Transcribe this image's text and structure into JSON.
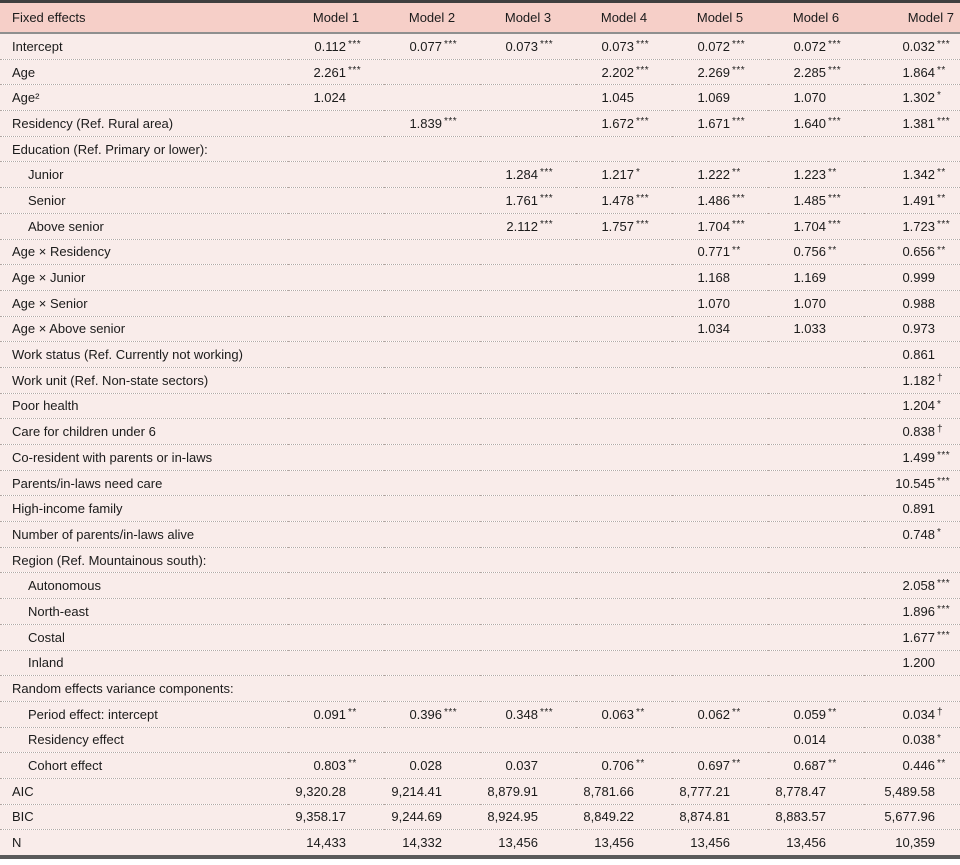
{
  "table": {
    "columns": [
      "Fixed effects",
      "Model 1",
      "Model 2",
      "Model 3",
      "Model 4",
      "Model 5",
      "Model 6",
      "Model 7"
    ],
    "rows": [
      {
        "label": "Intercept",
        "indent": false,
        "values": [
          "0.112***",
          "0.077***",
          "0.073***",
          "0.073***",
          "0.072***",
          "0.072***",
          "0.032***"
        ]
      },
      {
        "label": "Age",
        "indent": false,
        "values": [
          "2.261***",
          "",
          "",
          "2.202***",
          "2.269***",
          "2.285***",
          "1.864**"
        ]
      },
      {
        "label": "Age²",
        "indent": false,
        "values": [
          "1.024",
          "",
          "",
          "1.045",
          "1.069",
          "1.070",
          "1.302*"
        ]
      },
      {
        "label": "Residency (Ref. Rural area)",
        "indent": false,
        "values": [
          "",
          "1.839***",
          "",
          "1.672***",
          "1.671***",
          "1.640***",
          "1.381***"
        ]
      },
      {
        "label": "Education (Ref. Primary or lower):",
        "indent": false,
        "values": [
          "",
          "",
          "",
          "",
          "",
          "",
          ""
        ]
      },
      {
        "label": "Junior",
        "indent": true,
        "values": [
          "",
          "",
          "1.284***",
          "1.217*",
          "1.222**",
          "1.223**",
          "1.342**"
        ]
      },
      {
        "label": "Senior",
        "indent": true,
        "values": [
          "",
          "",
          "1.761***",
          "1.478***",
          "1.486***",
          "1.485***",
          "1.491**"
        ]
      },
      {
        "label": "Above senior",
        "indent": true,
        "values": [
          "",
          "",
          "2.112***",
          "1.757***",
          "1.704***",
          "1.704***",
          "1.723***"
        ]
      },
      {
        "label": "Age × Residency",
        "indent": false,
        "values": [
          "",
          "",
          "",
          "",
          "0.771**",
          "0.756**",
          "0.656**"
        ]
      },
      {
        "label": "Age × Junior",
        "indent": false,
        "values": [
          "",
          "",
          "",
          "",
          "1.168",
          "1.169",
          "0.999"
        ]
      },
      {
        "label": "Age × Senior",
        "indent": false,
        "values": [
          "",
          "",
          "",
          "",
          "1.070",
          "1.070",
          "0.988"
        ]
      },
      {
        "label": "Age × Above senior",
        "indent": false,
        "values": [
          "",
          "",
          "",
          "",
          "1.034",
          "1.033",
          "0.973"
        ]
      },
      {
        "label": "Work status (Ref. Currently not working)",
        "indent": false,
        "values": [
          "",
          "",
          "",
          "",
          "",
          "",
          "0.861"
        ]
      },
      {
        "label": "Work unit (Ref. Non-state sectors)",
        "indent": false,
        "values": [
          "",
          "",
          "",
          "",
          "",
          "",
          "1.182†"
        ]
      },
      {
        "label": "Poor health",
        "indent": false,
        "values": [
          "",
          "",
          "",
          "",
          "",
          "",
          "1.204*"
        ]
      },
      {
        "label": "Care for children under 6",
        "indent": false,
        "values": [
          "",
          "",
          "",
          "",
          "",
          "",
          "0.838†"
        ]
      },
      {
        "label": "Co-resident with parents or in-laws",
        "indent": false,
        "values": [
          "",
          "",
          "",
          "",
          "",
          "",
          "1.499***"
        ]
      },
      {
        "label": "Parents/in-laws need care",
        "indent": false,
        "values": [
          "",
          "",
          "",
          "",
          "",
          "",
          "10.545***"
        ]
      },
      {
        "label": "High-income family",
        "indent": false,
        "values": [
          "",
          "",
          "",
          "",
          "",
          "",
          "0.891"
        ]
      },
      {
        "label": "Number of parents/in-laws alive",
        "indent": false,
        "values": [
          "",
          "",
          "",
          "",
          "",
          "",
          "0.748*"
        ]
      },
      {
        "label": "Region (Ref. Mountainous south):",
        "indent": false,
        "values": [
          "",
          "",
          "",
          "",
          "",
          "",
          ""
        ]
      },
      {
        "label": "Autonomous",
        "indent": true,
        "values": [
          "",
          "",
          "",
          "",
          "",
          "",
          "2.058***"
        ]
      },
      {
        "label": "North-east",
        "indent": true,
        "values": [
          "",
          "",
          "",
          "",
          "",
          "",
          "1.896***"
        ]
      },
      {
        "label": "Costal",
        "indent": true,
        "values": [
          "",
          "",
          "",
          "",
          "",
          "",
          "1.677***"
        ]
      },
      {
        "label": "Inland",
        "indent": true,
        "values": [
          "",
          "",
          "",
          "",
          "",
          "",
          "1.200"
        ]
      },
      {
        "label": "Random effects variance components:",
        "indent": false,
        "values": [
          "",
          "",
          "",
          "",
          "",
          "",
          ""
        ]
      },
      {
        "label": "Period effect: intercept",
        "indent": true,
        "values": [
          "0.091**",
          "0.396***",
          "0.348***",
          "0.063**",
          "0.062**",
          "0.059**",
          "0.034†"
        ]
      },
      {
        "label": "Residency effect",
        "indent": true,
        "values": [
          "",
          "",
          "",
          "",
          "",
          "0.014",
          "0.038*"
        ]
      },
      {
        "label": "Cohort effect",
        "indent": true,
        "values": [
          "0.803**",
          "0.028",
          "0.037",
          "0.706**",
          "0.697**",
          "0.687**",
          "0.446**"
        ]
      },
      {
        "label": "AIC",
        "indent": false,
        "values": [
          "9,320.28",
          "9,214.41",
          "8,879.91",
          "8,781.66",
          "8,777.21",
          "8,778.47",
          "5,489.58"
        ]
      },
      {
        "label": "BIC",
        "indent": false,
        "values": [
          "9,358.17",
          "9,244.69",
          "8,924.95",
          "8,849.22",
          "8,874.81",
          "8,883.57",
          "5,677.96"
        ]
      },
      {
        "label": "N",
        "indent": false,
        "values": [
          "14,433",
          "14,332",
          "13,456",
          "13,456",
          "13,456",
          "13,456",
          "10,359"
        ]
      }
    ],
    "colors": {
      "header_bg": "#f6cfc8",
      "row_bg": "#f9ecea",
      "top_border": "#3f3f3f",
      "bottom_border": "#5a5a5a",
      "header_rule": "#8f8f8f",
      "row_divider": "#b3a7a3"
    }
  }
}
